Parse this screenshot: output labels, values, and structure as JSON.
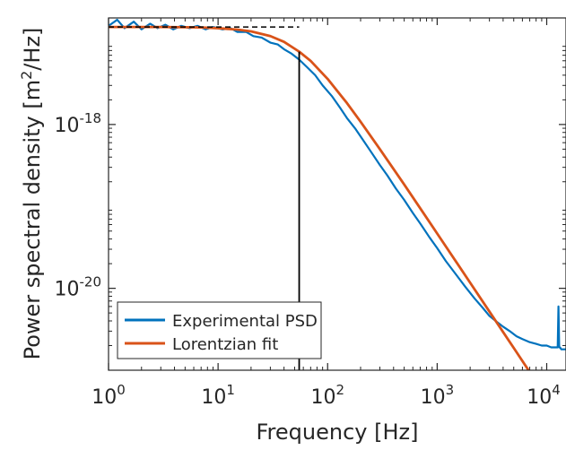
{
  "chart_data": {
    "type": "line",
    "title": "",
    "xlabel": "Frequency [Hz]",
    "ylabel": "Power spectral density [m",
    "ylabel_sup": "2",
    "ylabel_tail": "/Hz]",
    "x_scale": "log",
    "y_scale": "log",
    "xlim": [
      1,
      15000
    ],
    "ylim": [
      1e-21,
      2e-17
    ],
    "x_ticks": [
      {
        "value": 1,
        "base": "10",
        "exp": "0"
      },
      {
        "value": 10,
        "base": "10",
        "exp": "1"
      },
      {
        "value": 100,
        "base": "10",
        "exp": "2"
      },
      {
        "value": 1000,
        "base": "10",
        "exp": "3"
      },
      {
        "value": 10000,
        "base": "10",
        "exp": "4"
      }
    ],
    "y_ticks": [
      {
        "value": 1e-18,
        "base": "10",
        "exp": "-18"
      },
      {
        "value": 1e-20,
        "base": "10",
        "exp": "-20"
      }
    ],
    "grid": false,
    "legend_position": "bottom-left",
    "corner_frequency_hz": 55,
    "plateau_psd": 1.55e-17,
    "series": [
      {
        "name": "Experimental PSD",
        "color": "#0072BD",
        "x": [
          1,
          1.2,
          1.4,
          1.7,
          2,
          2.4,
          2.8,
          3.3,
          3.9,
          4.6,
          5.5,
          6.5,
          7.7,
          9,
          11,
          13,
          15,
          18,
          21,
          25,
          30,
          35,
          40,
          47,
          55,
          65,
          77,
          90,
          110,
          130,
          150,
          180,
          210,
          250,
          300,
          350,
          420,
          500,
          600,
          700,
          850,
          1000,
          1200,
          1500,
          1800,
          2200,
          2600,
          3000,
          3500,
          4000,
          4600,
          5300,
          6000,
          7000,
          8000,
          9000,
          10000,
          11000,
          12000,
          12600,
          12800,
          13000,
          13200,
          13600,
          14200,
          15000
        ],
        "y": [
          1.6e-17,
          1.9e-17,
          1.5e-17,
          1.8e-17,
          1.45e-17,
          1.7e-17,
          1.5e-17,
          1.65e-17,
          1.45e-17,
          1.6e-17,
          1.5e-17,
          1.6e-17,
          1.45e-17,
          1.55e-17,
          1.45e-17,
          1.5e-17,
          1.35e-17,
          1.35e-17,
          1.2e-17,
          1.15e-17,
          1e-17,
          9.5e-18,
          8.3e-18,
          7.3e-18,
          6.2e-18,
          5e-18,
          4e-18,
          3e-18,
          2.2e-18,
          1.6e-18,
          1.2e-18,
          8.8e-19,
          6.5e-19,
          4.6e-19,
          3.2e-19,
          2.4e-19,
          1.65e-19,
          1.2e-19,
          8.3e-20,
          6.2e-20,
          4.2e-20,
          3.1e-20,
          2.15e-20,
          1.45e-20,
          1.05e-20,
          7.5e-21,
          5.8e-21,
          4.6e-21,
          3.9e-21,
          3.4e-21,
          3e-21,
          2.6e-21,
          2.4e-21,
          2.2e-21,
          2.1e-21,
          2e-21,
          2e-21,
          1.9e-21,
          1.9e-21,
          1.9e-21,
          6e-21,
          1.9e-21,
          1.9e-21,
          1.8e-21,
          1.8e-21,
          1.8e-21
        ]
      },
      {
        "name": "Lorentzian fit",
        "color": "#D95319",
        "x": [
          1,
          1.5,
          2,
          3,
          5,
          7,
          10,
          15,
          20,
          30,
          40,
          55,
          70,
          100,
          150,
          200,
          300,
          500,
          700,
          1000,
          1500,
          2000,
          3000,
          5000,
          7000,
          8100
        ],
        "y": [
          1.55e-17,
          1.55e-17,
          1.55e-17,
          1.55e-17,
          1.54e-17,
          1.53e-17,
          1.5e-17,
          1.44e-17,
          1.37e-17,
          1.2e-17,
          1.02e-17,
          7.75e-18,
          5.98e-18,
          3.6e-18,
          1.83e-18,
          1.08e-18,
          4.99e-19,
          1.85e-19,
          9.5e-20,
          4.67e-20,
          2.08e-20,
          1.17e-20,
          5.2e-21,
          1.87e-21,
          9.5e-22,
          7.1e-22
        ]
      }
    ],
    "annotations": [
      {
        "kind": "horizontal-dashed",
        "x_from": 1,
        "x_to": 55,
        "y": 1.55e-17
      },
      {
        "kind": "vertical-line",
        "x": 55
      }
    ]
  }
}
